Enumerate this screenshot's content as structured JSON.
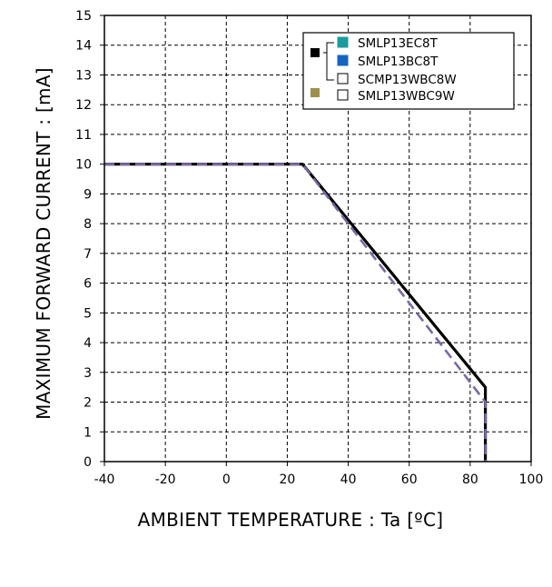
{
  "chart_data": {
    "type": "line",
    "xlabel": "AMBIENT TEMPERATURE : Ta [ºC]",
    "ylabel": "MAXIMUM FORWARD CURRENT : [mA]",
    "xlim": [
      -40,
      100
    ],
    "ylim": [
      0,
      15
    ],
    "x_ticks": [
      "-40",
      "-20",
      "0",
      "20",
      "40",
      "60",
      "80",
      "100"
    ],
    "y_ticks": [
      "0",
      "1",
      "2",
      "3",
      "4",
      "5",
      "6",
      "7",
      "8",
      "9",
      "10",
      "11",
      "12",
      "13",
      "14",
      "15"
    ],
    "grid": true,
    "legend_position": "top-right",
    "legend": [
      {
        "label": "SMLP13EC8T",
        "marker_color": "#1a9c9c"
      },
      {
        "label": "SMLP13BC8T",
        "marker_color": "#1565c0"
      },
      {
        "label": "SCMP13WBC8W",
        "marker_color": "#ffffff"
      },
      {
        "label": "SMLP13WBC9W",
        "marker_color": "#ffffff"
      }
    ],
    "group_markers": [
      {
        "color": "#000000"
      },
      {
        "color": "#9c8f4c"
      }
    ],
    "series": [
      {
        "style": "solid",
        "color": "#000000",
        "x": [
          -40,
          25,
          85,
          85
        ],
        "y": [
          10,
          10,
          2.5,
          0
        ]
      },
      {
        "style": "dashed",
        "color": "#7b68a6",
        "x": [
          -40,
          25,
          85,
          85
        ],
        "y": [
          10,
          10,
          2,
          0
        ]
      }
    ]
  }
}
